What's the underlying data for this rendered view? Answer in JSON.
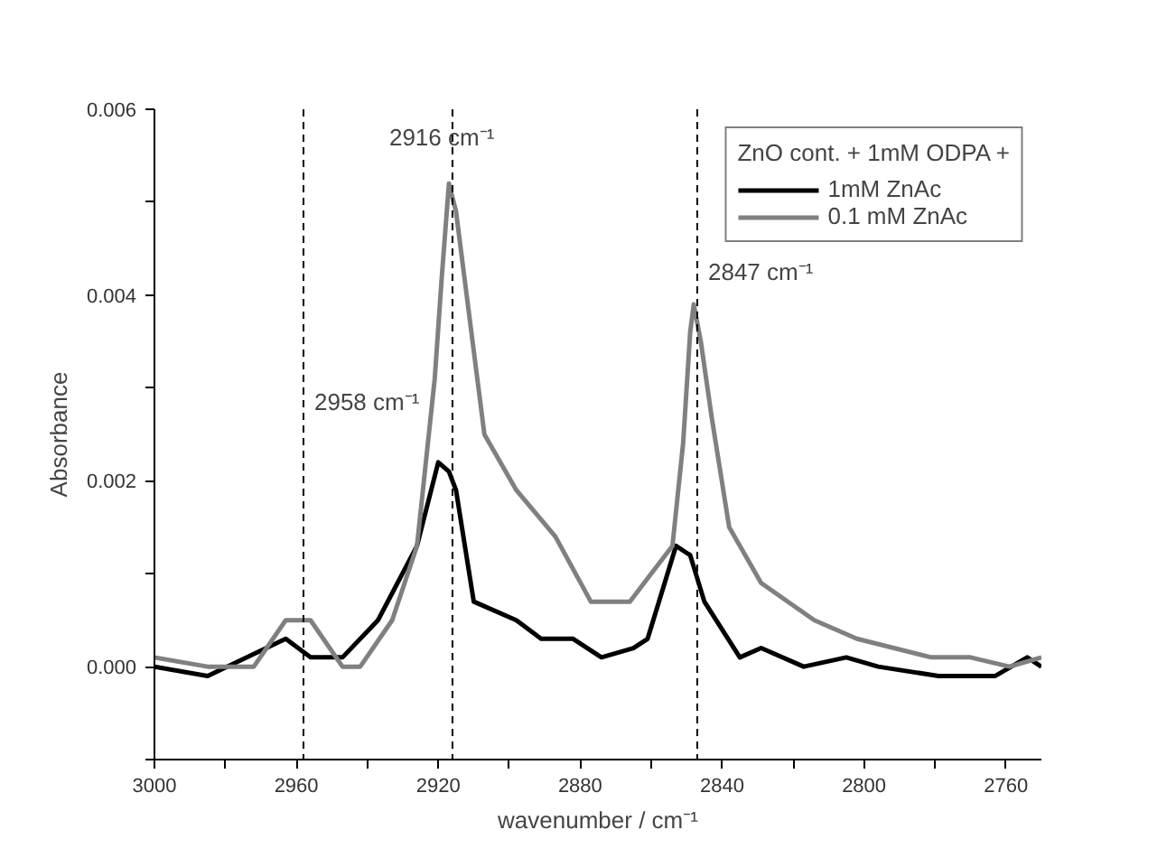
{
  "chart_data": {
    "type": "line",
    "xlabel": "wavenumber / cm⁻¹",
    "ylabel": "Absorbance",
    "legend_title": "ZnO cont. + 1mM ODPA +",
    "xlim": [
      3000,
      2750
    ],
    "ylim": [
      -0.001,
      0.006
    ],
    "xticks": [
      3000,
      {
        "value": 2980,
        "label": null
      },
      2960,
      {
        "value": 2940,
        "label": null
      },
      2920,
      {
        "value": 2900,
        "label": null
      },
      2880,
      {
        "value": 2860,
        "label": null
      },
      2840,
      {
        "value": 2820,
        "label": null
      },
      2800,
      {
        "value": 2780,
        "label": null
      },
      2760
    ],
    "yticks": [
      {
        "value": -0.001,
        "label": null
      },
      {
        "value": 0,
        "label": "0.000"
      },
      {
        "value": 0.001,
        "label": null
      },
      0.002,
      {
        "value": 0.003,
        "label": null
      },
      0.004,
      {
        "value": 0.005,
        "label": null
      },
      0.006
    ],
    "grid": false,
    "legend": "top right",
    "line_style": "solid",
    "marker": "none",
    "series": [
      {
        "name": "1mM ZnAc",
        "color": "#000000",
        "x": [
          3000,
          2985,
          2963,
          2956,
          2947,
          2937,
          2926,
          2922,
          2920,
          2917,
          2915,
          2910,
          2898,
          2891,
          2882,
          2874,
          2865,
          2861,
          2853,
          2849,
          2845,
          2835,
          2829,
          2817,
          2805,
          2796,
          2779,
          2763,
          2754,
          2750
        ],
        "values": [
          0.0,
          -0.0001,
          0.0003,
          0.0001,
          0.0001,
          0.0005,
          0.0013,
          0.0019,
          0.0022,
          0.0021,
          0.0019,
          0.0007,
          0.0005,
          0.0003,
          0.0003,
          0.0001,
          0.0002,
          0.0003,
          0.0013,
          0.0012,
          0.0007,
          0.0001,
          0.0002,
          0.0,
          0.0001,
          0.0,
          -0.0001,
          -0.0001,
          0.0001,
          0
        ]
      },
      {
        "name": "0.1 mM ZnAc",
        "color": "#808080",
        "x": [
          3000,
          2985,
          2972,
          2963,
          2956,
          2947,
          2942,
          2933,
          2926,
          2921,
          2919,
          2917,
          2915,
          2912,
          2907,
          2898,
          2887,
          2877,
          2866,
          2860,
          2854,
          2851,
          2849,
          2848,
          2846,
          2843,
          2838,
          2829,
          2814,
          2802,
          2781,
          2770,
          2759,
          2750
        ],
        "values": [
          0.0001,
          0.0,
          0.0,
          0.0005,
          0.0005,
          0.0,
          0.0,
          0.0005,
          0.0013,
          0.0031,
          0.0042,
          0.0052,
          0.0049,
          0.004,
          0.0025,
          0.0019,
          0.0014,
          0.0007,
          0.0007,
          0.001,
          0.0013,
          0.0024,
          0.0036,
          0.0039,
          0.0035,
          0.0027,
          0.0015,
          0.0009,
          0.0005,
          0.0003,
          0.0001,
          0.0001,
          0,
          0.0001
        ]
      }
    ],
    "ref_lines": [
      {
        "axis": "x",
        "value": 2958,
        "label": "2958 cm⁻¹",
        "line_style": "dashed",
        "color": "#000000"
      },
      {
        "axis": "x",
        "value": 2916,
        "label": "2916 cm⁻¹",
        "line_style": "dashed",
        "color": "#000000"
      },
      {
        "axis": "x",
        "value": 2847,
        "label": "2847 cm⁻¹",
        "line_style": "dashed",
        "color": "#000000"
      }
    ]
  }
}
